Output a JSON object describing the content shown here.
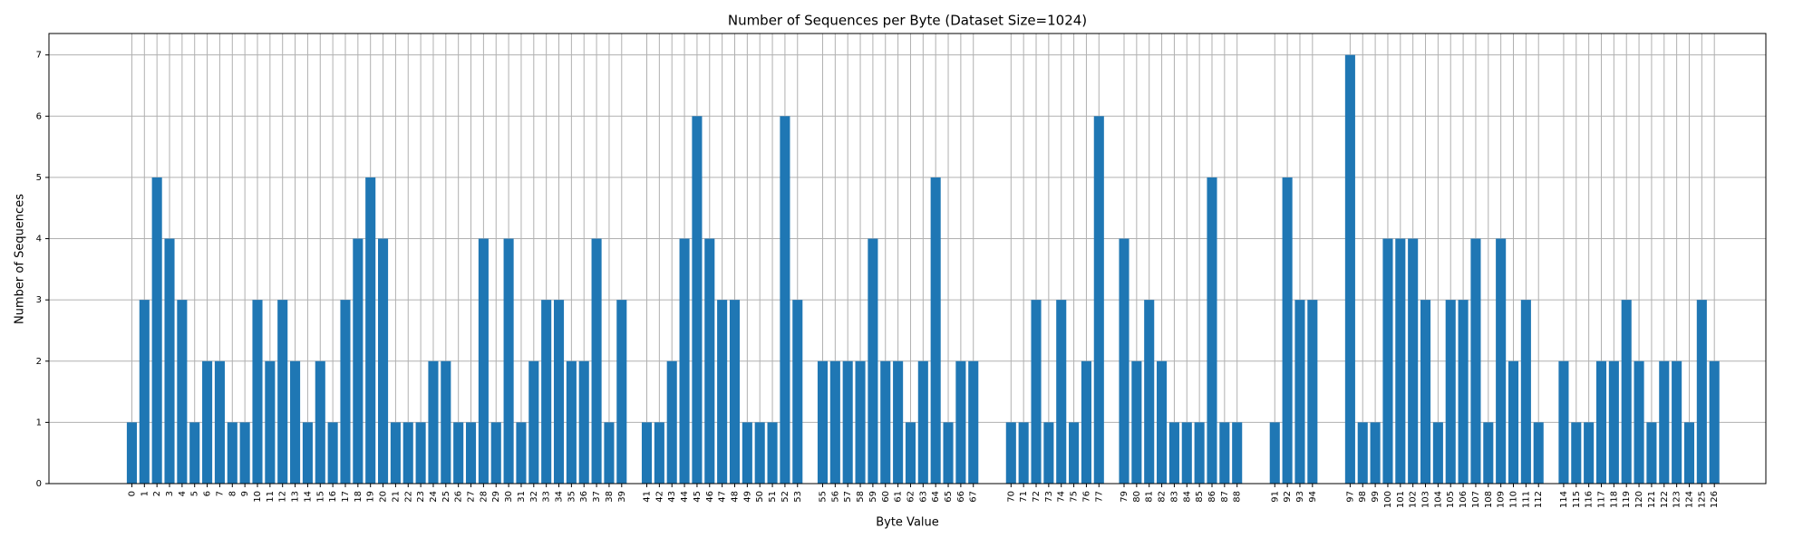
{
  "chart_data": {
    "type": "bar",
    "title": "Number of Sequences per Byte (Dataset Size=1024)",
    "xlabel": "Byte Value",
    "ylabel": "Number of Sequences",
    "x": [
      0,
      1,
      2,
      3,
      4,
      5,
      6,
      7,
      8,
      9,
      10,
      11,
      12,
      13,
      14,
      15,
      16,
      17,
      18,
      19,
      20,
      21,
      22,
      23,
      24,
      25,
      26,
      27,
      28,
      29,
      30,
      31,
      32,
      33,
      34,
      35,
      36,
      37,
      38,
      39,
      41,
      42,
      43,
      44,
      45,
      46,
      47,
      48,
      49,
      50,
      51,
      52,
      53,
      55,
      56,
      57,
      58,
      59,
      60,
      61,
      62,
      63,
      64,
      65,
      66,
      67,
      70,
      71,
      72,
      73,
      74,
      75,
      76,
      77,
      79,
      80,
      81,
      82,
      83,
      84,
      85,
      86,
      87,
      88,
      91,
      92,
      93,
      94,
      97,
      98,
      99,
      100,
      101,
      102,
      103,
      104,
      105,
      106,
      107,
      108,
      109,
      110,
      111,
      112,
      114,
      115,
      116,
      117,
      118,
      119,
      120,
      121,
      122,
      123,
      124,
      125,
      126
    ],
    "values": [
      1,
      3,
      5,
      4,
      3,
      1,
      2,
      2,
      1,
      1,
      3,
      2,
      3,
      2,
      1,
      2,
      1,
      3,
      4,
      5,
      4,
      1,
      1,
      1,
      2,
      2,
      1,
      1,
      4,
      1,
      4,
      1,
      2,
      3,
      3,
      2,
      2,
      4,
      1,
      3,
      1,
      1,
      2,
      4,
      6,
      4,
      3,
      3,
      1,
      1,
      1,
      6,
      3,
      2,
      2,
      2,
      2,
      4,
      2,
      2,
      1,
      2,
      5,
      1,
      2,
      2,
      1,
      1,
      3,
      1,
      3,
      1,
      2,
      6,
      4,
      2,
      3,
      2,
      1,
      1,
      1,
      5,
      1,
      1,
      1,
      5,
      3,
      3,
      7,
      1,
      1,
      4,
      4,
      4,
      3,
      1,
      3,
      3,
      4,
      1,
      4,
      2,
      3,
      1,
      2,
      1,
      1,
      2,
      2,
      3,
      2,
      1,
      2,
      2,
      1,
      3,
      2
    ],
    "xticks": [
      0,
      1,
      2,
      3,
      4,
      5,
      6,
      7,
      8,
      9,
      10,
      11,
      12,
      13,
      14,
      15,
      16,
      17,
      18,
      19,
      20,
      21,
      22,
      23,
      24,
      25,
      26,
      27,
      28,
      29,
      30,
      31,
      32,
      33,
      34,
      35,
      36,
      37,
      38,
      39,
      41,
      42,
      43,
      44,
      45,
      46,
      47,
      48,
      49,
      50,
      51,
      52,
      53,
      55,
      56,
      57,
      58,
      59,
      60,
      61,
      62,
      63,
      64,
      65,
      66,
      67,
      70,
      71,
      72,
      73,
      74,
      75,
      76,
      77,
      79,
      80,
      81,
      82,
      83,
      84,
      85,
      86,
      87,
      88,
      91,
      92,
      93,
      94,
      97,
      98,
      99,
      100,
      101,
      102,
      103,
      104,
      105,
      106,
      107,
      108,
      109,
      110,
      111,
      112,
      114,
      115,
      116,
      117,
      118,
      119,
      120,
      121,
      122,
      123,
      124,
      125,
      126
    ],
    "xlim": [
      -6.6,
      130.1
    ],
    "ylim": [
      0,
      7.35
    ],
    "yticks": [
      0,
      1,
      2,
      3,
      4,
      5,
      6,
      7
    ],
    "color": "#1f77b4",
    "grid": true
  }
}
